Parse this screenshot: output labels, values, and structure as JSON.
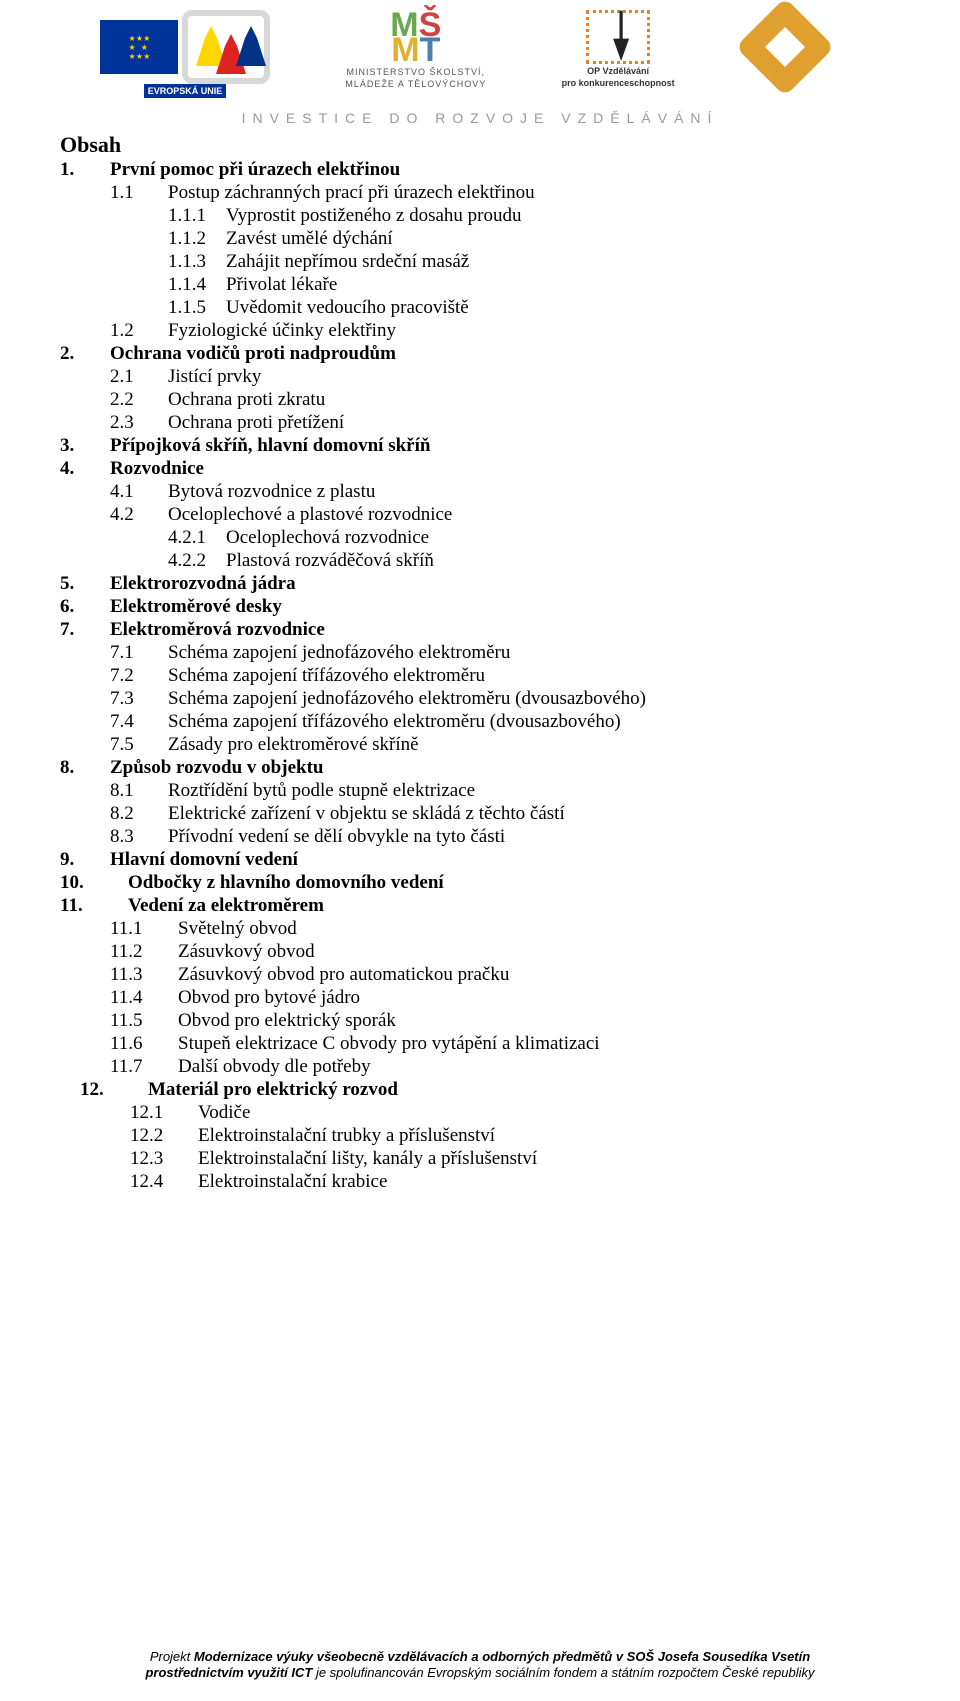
{
  "tagline": "INVESTICE DO ROZVOJE VZDĚLÁVÁNÍ",
  "logos": {
    "eu_label": "EVROPSKÁ UNIE",
    "msmt_line1": "MINISTERSTVO ŠKOLSTVÍ,",
    "msmt_line2": "MLÁDEŽE A TĚLOVÝCHOVY",
    "opvk_line1": "OP Vzdělávání",
    "opvk_line2": "pro konkurenceschopnost"
  },
  "title": "Obsah",
  "toc": [
    {
      "n": "1.",
      "t": "První pomoc při úrazech elektřinou",
      "c": [
        {
          "n": "1.1",
          "t": "Postup záchranných prací při úrazech elektřinou",
          "c": [
            {
              "n": "1.1.1",
              "t": "Vyprostit postiženého z dosahu proudu"
            },
            {
              "n": "1.1.2",
              "t": "Zavést umělé dýchání"
            },
            {
              "n": "1.1.3",
              "t": "Zahájit nepřímou srdeční masáž"
            },
            {
              "n": "1.1.4",
              "t": "Přivolat lékaře"
            },
            {
              "n": "1.1.5",
              "t": "Uvědomit vedoucího pracoviště"
            }
          ]
        },
        {
          "n": "1.2",
          "t": "Fyziologické účinky elektřiny"
        }
      ]
    },
    {
      "n": "2.",
      "t": "Ochrana vodičů proti nadproudům",
      "c": [
        {
          "n": "2.1",
          "t": "Jistící prvky"
        },
        {
          "n": "2.2",
          "t": "Ochrana proti zkratu"
        },
        {
          "n": "2.3",
          "t": "Ochrana proti přetížení"
        }
      ]
    },
    {
      "n": "3.",
      "t": "Přípojková skříň, hlavní domovní skříň"
    },
    {
      "n": "4.",
      "t": "Rozvodnice",
      "c": [
        {
          "n": "4.1",
          "t": "Bytová rozvodnice z plastu"
        },
        {
          "n": "4.2",
          "t": "Oceloplechové a plastové rozvodnice",
          "c": [
            {
              "n": "4.2.1",
              "t": "Oceloplechová rozvodnice"
            },
            {
              "n": "4.2.2",
              "t": "Plastová rozváděčová skříň"
            }
          ]
        }
      ]
    },
    {
      "n": "5.",
      "t": "Elektrorozvodná jádra"
    },
    {
      "n": "6.",
      "t": "Elektroměrové desky"
    },
    {
      "n": "7.",
      "t": "Elektroměrová rozvodnice",
      "c": [
        {
          "n": "7.1",
          "t": "Schéma zapojení jednofázového elektroměru"
        },
        {
          "n": "7.2",
          "t": "Schéma zapojení třífázového elektroměru"
        },
        {
          "n": "7.3",
          "t": "Schéma zapojení jednofázového elektroměru (dvousazbového)"
        },
        {
          "n": "7.4",
          "t": "Schéma zapojení třífázového elektroměru (dvousazbového)"
        },
        {
          "n": "7.5",
          "t": "Zásady pro elektroměrové skříně"
        }
      ]
    },
    {
      "n": "8.",
      "t": "Způsob rozvodu v objektu",
      "c": [
        {
          "n": "8.1",
          "t": "Roztřídění bytů podle stupně elektrizace"
        },
        {
          "n": "8.2",
          "t": "Elektrické zařízení v objektu se skládá z těchto částí"
        },
        {
          "n": "8.3",
          "t": "Přívodní vedení se dělí obvykle na tyto části"
        }
      ]
    },
    {
      "n": "9.",
      "t": "Hlavní domovní vedení"
    },
    {
      "n": "10.",
      "t": "Odbočky z hlavního domovního vedení"
    },
    {
      "n": "11.",
      "t": "Vedení za elektroměrem",
      "c": [
        {
          "n": "11.1",
          "t": "Světelný obvod"
        },
        {
          "n": "11.2",
          "t": "Zásuvkový obvod"
        },
        {
          "n": "11.3",
          "t": "Zásuvkový obvod pro automatickou pračku"
        },
        {
          "n": "11.4",
          "t": "Obvod pro bytové jádro"
        },
        {
          "n": "11.5",
          "t": "Obvod pro elektrický sporák"
        },
        {
          "n": "11.6",
          "t": "Stupeň elektrizace C  obvody pro vytápění a klimatizaci"
        },
        {
          "n": "11.7",
          "t": "Další obvody dle potřeby"
        }
      ]
    },
    {
      "n": "12.",
      "t": "Materiál pro elektrický rozvod",
      "indent": true,
      "c": [
        {
          "n": "12.1",
          "t": "Vodiče"
        },
        {
          "n": "12.2",
          "t": "Elektroinstalační trubky a příslušenství"
        },
        {
          "n": "12.3",
          "t": "Elektroinstalační lišty, kanály a příslušenství"
        },
        {
          "n": "12.4",
          "t": "Elektroinstalační krabice"
        }
      ]
    }
  ],
  "footer": {
    "line1_prefix": "Projekt ",
    "line1_bold": "Modernizace výuky všeobecně vzdělávacích a odborných předmětů v SOŠ Josefa Sousedíka Vsetín",
    "line2_bold": "prostřednictvím využití ICT",
    "line2_rest": " je spolufinancován Evropským sociálním fondem a státním rozpočtem České republiky"
  }
}
